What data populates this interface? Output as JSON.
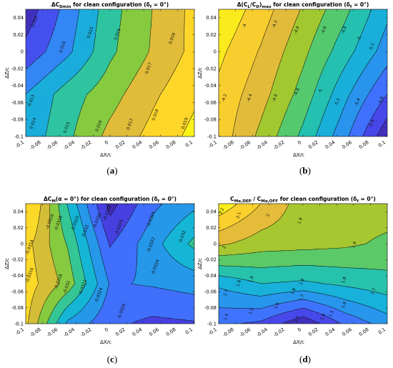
{
  "chart_data": [
    {
      "type": "heatmap",
      "title": "ΔC_Dmin for clean configuration (δ_f = 0°)",
      "title_parts": {
        "pre": "ΔC",
        "sub": "Dmin",
        "post": " for clean configuration (δ",
        "sub2": "f",
        "post2": " = 0°)"
      },
      "xlabel": "ΔX/c",
      "ylabel": "ΔZ/c",
      "xlim": [
        -0.1,
        0.1
      ],
      "ylim": [
        -0.1,
        0.05
      ],
      "x_ticks": [
        "-0.1",
        "-0.08",
        "-0.06",
        "-0.04",
        "-0.02",
        "0",
        "0.02",
        "0.04",
        "0.06",
        "0.08",
        "0.1"
      ],
      "y_ticks": [
        "0.04",
        "0.02",
        "0",
        "-0.02",
        "-0.04",
        "-0.06",
        "-0.08",
        "-0.1"
      ],
      "x": [
        -0.1,
        -0.05,
        0,
        0.05,
        0.1
      ],
      "y": [
        -0.1,
        -0.05,
        0,
        0.05
      ],
      "z": [
        [
          0.0143,
          0.0158,
          0.0173,
          0.0183,
          0.0193
        ],
        [
          0.014,
          0.0155,
          0.0166,
          0.0178,
          0.0188
        ],
        [
          0.0123,
          0.0138,
          0.0158,
          0.0171,
          0.0183
        ],
        [
          0.0114,
          0.0134,
          0.0156,
          0.017,
          0.0183
        ]
      ],
      "levels": [
        0.012,
        0.013,
        0.014,
        0.015,
        0.016,
        0.017,
        0.018,
        0.019
      ],
      "contour_labels": [
        {
          "text": "0.012",
          "x": -0.088,
          "y": 0.035
        },
        {
          "text": "0.013",
          "x": -0.092,
          "y": -0.058
        },
        {
          "text": "0.014",
          "x": -0.055,
          "y": 0.005
        },
        {
          "text": "0.014",
          "x": -0.09,
          "y": -0.085
        },
        {
          "text": "0.015",
          "x": -0.022,
          "y": 0.022
        },
        {
          "text": "0.015",
          "x": -0.05,
          "y": -0.09
        },
        {
          "text": "0.016",
          "x": 0.01,
          "y": 0.02
        },
        {
          "text": "0.016",
          "x": -0.012,
          "y": -0.088
        },
        {
          "text": "0.017",
          "x": 0.047,
          "y": -0.02
        },
        {
          "text": "0.017",
          "x": 0.025,
          "y": -0.086
        },
        {
          "text": "0.018",
          "x": 0.075,
          "y": 0.015
        },
        {
          "text": "0.018",
          "x": 0.055,
          "y": -0.075
        },
        {
          "text": "0.019",
          "x": 0.09,
          "y": -0.085
        }
      ],
      "panel_label": "(a)"
    },
    {
      "type": "heatmap",
      "title": "Δ(C_L/C_D)_max for clean configuration (δ_f = 0°)",
      "title_parts": {
        "pre": "Δ(C",
        "sub": "L",
        "mid": "/C",
        "sub_b": "D",
        "mid2": ")",
        "sub_c": "max",
        "post": " for clean configuration (δ",
        "sub2": "f",
        "post2": " = 0°)"
      },
      "xlabel": "ΔX/c",
      "ylabel": "ΔZ/c",
      "xlim": [
        -0.1,
        0.1
      ],
      "ylim": [
        -0.1,
        0.05
      ],
      "x_ticks": [
        "-0.1",
        "-0.08",
        "-0.06",
        "-0.04",
        "-0.02",
        "0",
        "0.02",
        "0.04",
        "0.06",
        "0.08",
        "0.1"
      ],
      "y_ticks": [
        "0.04",
        "0.02",
        "0",
        "-0.02",
        "-0.04",
        "-0.06",
        "-0.08",
        "-0.1"
      ],
      "x": [
        -0.1,
        -0.05,
        0,
        0.05,
        0.1
      ],
      "y": [
        -0.1,
        -0.05,
        0,
        0.05
      ],
      "z": [
        [
          -4.08,
          -4.45,
          -4.85,
          -5.35,
          -5.95
        ],
        [
          -4.05,
          -4.32,
          -4.68,
          -5.15,
          -5.6
        ],
        [
          -3.95,
          -4.22,
          -4.55,
          -4.92,
          -5.3
        ],
        [
          -3.82,
          -4.1,
          -4.42,
          -4.75,
          -5.15
        ]
      ],
      "levels": [
        -4,
        -4.2,
        -4.4,
        -4.6,
        -4.8,
        -5,
        -5.2,
        -5.4,
        -5.6,
        -5.8
      ],
      "contour_labels": [
        {
          "text": "-4",
          "x": -0.068,
          "y": 0.03
        },
        {
          "text": "-4.2",
          "x": -0.032,
          "y": 0.032
        },
        {
          "text": "-4.4",
          "x": -0.006,
          "y": 0.025
        },
        {
          "text": "-4.6",
          "x": 0.026,
          "y": 0.025
        },
        {
          "text": "-4.8",
          "x": 0.05,
          "y": 0.025
        },
        {
          "text": "-5",
          "x": 0.068,
          "y": 0.015
        },
        {
          "text": "-5.2",
          "x": 0.083,
          "y": 0.005
        },
        {
          "text": "-4.2",
          "x": -0.092,
          "y": -0.055
        },
        {
          "text": "-4.4",
          "x": -0.062,
          "y": -0.055
        },
        {
          "text": "-4.6",
          "x": -0.032,
          "y": -0.055
        },
        {
          "text": "-4.8",
          "x": -0.006,
          "y": -0.048
        },
        {
          "text": "-5",
          "x": 0.022,
          "y": -0.047
        },
        {
          "text": "-5.2",
          "x": 0.042,
          "y": -0.06
        },
        {
          "text": "-5.4",
          "x": 0.066,
          "y": -0.06
        },
        {
          "text": "-5.6",
          "x": 0.083,
          "y": -0.085
        },
        {
          "text": "-5.8",
          "x": 0.094,
          "y": -0.058
        }
      ],
      "panel_label": "(b)"
    },
    {
      "type": "heatmap",
      "title": "ΔC_M(α = 0°) for clean configuration (δ_f = 0°)",
      "title_parts": {
        "pre": "ΔC",
        "sub": "M",
        "post": "(α = 0°) for clean configuration (δ",
        "sub2": "f",
        "post2": " = 0°)"
      },
      "xlabel": "ΔX/c",
      "ylabel": "ΔZ/c",
      "xlim": [
        -0.1,
        0.1
      ],
      "ylim": [
        -0.1,
        0.05
      ],
      "x_ticks": [
        "-0.1",
        "-0.08",
        "-0.06",
        "-0.04",
        "-0.02",
        "0",
        "0.02",
        "0.04",
        "0.06",
        "0.08",
        "0.1"
      ],
      "y_ticks": [
        "0.04",
        "0.02",
        "0",
        "-0.02",
        "-0.04",
        "-0.06",
        "-0.08",
        "-0.1"
      ],
      "x": [
        -0.1,
        -0.05,
        0,
        0.05,
        0.1
      ],
      "y": [
        -0.1,
        -0.05,
        0,
        0.05
      ],
      "z": [
        [
          -0.03135,
          -0.03225,
          -0.03255,
          -0.03265,
          -0.03262
        ],
        [
          -0.03128,
          -0.03168,
          -0.03242,
          -0.03238,
          -0.03232
        ],
        [
          -0.03132,
          -0.03182,
          -0.03262,
          -0.03228,
          -0.03195
        ],
        [
          -0.03105,
          -0.03202,
          -0.03288,
          -0.03245,
          -0.03225
        ]
      ],
      "levels": [
        -0.0314,
        -0.0316,
        -0.0318,
        -0.032,
        -0.0322,
        -0.0324,
        -0.0326,
        -0.0328
      ],
      "contour_labels": [
        {
          "text": "-0.0314",
          "x": -0.094,
          "y": -0.005
        },
        {
          "text": "-0.0316",
          "x": -0.094,
          "y": -0.04
        },
        {
          "text": "-0.0316",
          "x": -0.07,
          "y": 0.027
        },
        {
          "text": "-0.0318",
          "x": -0.06,
          "y": 0.025
        },
        {
          "text": "-0.0318",
          "x": -0.06,
          "y": -0.048
        },
        {
          "text": "-0.032",
          "x": -0.05,
          "y": -0.055
        },
        {
          "text": "-0.0322",
          "x": -0.04,
          "y": 0.025
        },
        {
          "text": "-0.0322",
          "x": -0.031,
          "y": -0.055
        },
        {
          "text": "-0.032",
          "x": -0.028,
          "y": 0.015
        },
        {
          "text": "-0.0326",
          "x": -0.014,
          "y": 0.028
        },
        {
          "text": "-0.0328",
          "x": -0.002,
          "y": 0.038
        },
        {
          "text": "-0.0326",
          "x": 0.012,
          "y": 0.02
        },
        {
          "text": "-0.0324",
          "x": 0.05,
          "y": 0.03
        },
        {
          "text": "-0.0324",
          "x": -0.012,
          "y": -0.065
        },
        {
          "text": "-0.0322",
          "x": 0.05,
          "y": -0.002
        },
        {
          "text": "-0.032",
          "x": 0.087,
          "y": 0.008
        },
        {
          "text": "-0.0324",
          "x": 0.055,
          "y": -0.03
        },
        {
          "text": "-0.0326",
          "x": 0.015,
          "y": -0.085
        }
      ],
      "panel_label": "(c)"
    },
    {
      "type": "heatmap",
      "title": "C_Mα,DEP / C_Mα,OFF for clean configuration (δ_f = 0°)",
      "title_parts": {
        "pre": "C",
        "sub": "Mα,DEP",
        "mid": " / C",
        "sub_b": "Mα,OFF",
        "post": " for clean configuration (δ",
        "sub2": "f",
        "post2": " = 0°)"
      },
      "xlabel": "ΔX/c",
      "ylabel": "ΔZ/c",
      "xlim": [
        -0.1,
        0.1
      ],
      "ylim": [
        -0.1,
        0.05
      ],
      "x_ticks": [
        "-0.1",
        "-0.08",
        "-0.06",
        "-0.04",
        "-0.02",
        "0",
        "0.02",
        "0.04",
        "0.06",
        "0.08",
        "0.1"
      ],
      "y_ticks": [
        "0.04",
        "0.02",
        "0",
        "-0.02",
        "-0.04",
        "-0.06",
        "-0.08",
        "-0.1"
      ],
      "x": [
        -0.1,
        -0.05,
        0,
        0.05,
        0.1
      ],
      "y": [
        -0.1,
        -0.05,
        0,
        0.05
      ],
      "z": [
        [
          1.42,
          1.38,
          1.22,
          1.42,
          1.55
        ],
        [
          1.62,
          1.7,
          1.68,
          1.72,
          1.76
        ],
        [
          2.02,
          1.95,
          1.94,
          1.92,
          1.88
        ],
        [
          2.28,
          2.1,
          1.95,
          1.95,
          1.95
        ]
      ],
      "levels": [
        1.3,
        1.4,
        1.5,
        1.6,
        1.7,
        1.8,
        1.9,
        2,
        2.1,
        2.2
      ],
      "contour_labels": [
        {
          "text": "2.2",
          "x": -0.095,
          "y": 0.04
        },
        {
          "text": "2.1",
          "x": -0.075,
          "y": 0.035
        },
        {
          "text": "2",
          "x": -0.04,
          "y": 0.035
        },
        {
          "text": "1.9",
          "x": -0.002,
          "y": 0.028
        },
        {
          "text": "2",
          "x": -0.092,
          "y": -0.005
        },
        {
          "text": "1.9",
          "x": 0.062,
          "y": -0.002
        },
        {
          "text": "1.9",
          "x": -0.06,
          "y": -0.045
        },
        {
          "text": "1.9",
          "x": 0.0,
          "y": -0.048
        },
        {
          "text": "1.8",
          "x": -0.075,
          "y": -0.05
        },
        {
          "text": "1.8",
          "x": 0.05,
          "y": -0.046
        },
        {
          "text": "1.8",
          "x": -0.01,
          "y": -0.06
        },
        {
          "text": "1.7",
          "x": -0.09,
          "y": -0.062
        },
        {
          "text": "1.7",
          "x": 0.0,
          "y": -0.068
        },
        {
          "text": "1.7",
          "x": 0.085,
          "y": -0.06
        },
        {
          "text": "1.6",
          "x": -0.03,
          "y": -0.078
        },
        {
          "text": "1.6",
          "x": 0.05,
          "y": -0.077
        },
        {
          "text": "1.5",
          "x": -0.06,
          "y": -0.085
        },
        {
          "text": "1.5",
          "x": 0.035,
          "y": -0.088
        },
        {
          "text": "1.4",
          "x": -0.09,
          "y": -0.092
        },
        {
          "text": "1.4",
          "x": 0.025,
          "y": -0.092
        },
        {
          "text": "1.3",
          "x": -0.006,
          "y": -0.095
        }
      ],
      "panel_label": "(d)"
    }
  ],
  "colormap": [
    "#3e26a8",
    "#4743e8",
    "#3e76fe",
    "#219ee7",
    "#13bbd1",
    "#3bc986",
    "#98ca2e",
    "#e4bb3a",
    "#fdd22b",
    "#f9fb15"
  ]
}
